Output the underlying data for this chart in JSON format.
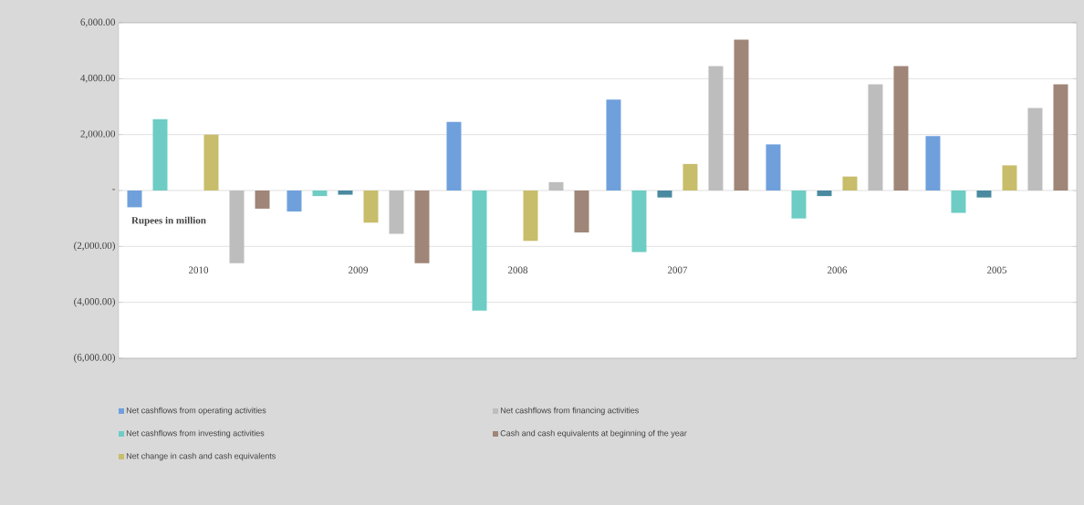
{
  "chart_data": {
    "type": "bar",
    "categories": [
      "2010",
      "2009",
      "2008",
      "2007",
      "2006",
      "2005"
    ],
    "series": [
      {
        "name": "Net cashflows from operating activities",
        "color": "#6fa0dc",
        "values": [
          -600,
          -750,
          2450,
          3250,
          1650,
          1950
        ]
      },
      {
        "name": "Net cashflows from investing activities",
        "color": "#6dcdc4",
        "values": [
          2550,
          -200,
          -4300,
          -2200,
          -1000,
          -800
        ]
      },
      {
        "color": "#4a8aa0",
        "values": [
          0,
          -150,
          0,
          -250,
          -200,
          -250
        ]
      },
      {
        "name": "Net change in cash and cash equivalents",
        "color": "#c8bd6a",
        "values": [
          2000,
          -1150,
          -1800,
          950,
          500,
          900
        ]
      },
      {
        "name": "Net cashflows from financing activities",
        "color": "#bdbdbd",
        "values": [
          -2600,
          -1550,
          300,
          4450,
          3800,
          2950
        ]
      },
      {
        "name": "Cash and cash equivalents at beginning of the year",
        "color": "#a08678",
        "values": [
          -650,
          -2600,
          -1500,
          5400,
          4450,
          3800
        ]
      }
    ],
    "ylim": [
      -6000,
      6000
    ],
    "yticks": [
      {
        "value": 6000,
        "label": "6,000.00"
      },
      {
        "value": 4000,
        "label": "4,000.00"
      },
      {
        "value": 2000,
        "label": "2,000.00"
      },
      {
        "value": 0,
        "label": "-"
      },
      {
        "value": -2000,
        "label": "(2,000.00)"
      },
      {
        "value": -4000,
        "label": "(4,000.00)"
      },
      {
        "value": -6000,
        "label": "(6,000.00)"
      }
    ],
    "grid": "y",
    "legend": "bottom",
    "annotations": [
      "Rupees in million"
    ]
  }
}
